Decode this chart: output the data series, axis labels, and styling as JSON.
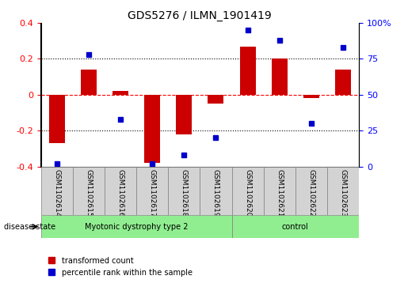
{
  "title": "GDS5276 / ILMN_1901419",
  "samples": [
    "GSM1102614",
    "GSM1102615",
    "GSM1102616",
    "GSM1102617",
    "GSM1102618",
    "GSM1102619",
    "GSM1102620",
    "GSM1102621",
    "GSM1102622",
    "GSM1102623"
  ],
  "bar_values": [
    -0.27,
    0.14,
    0.02,
    -0.38,
    -0.22,
    -0.05,
    0.27,
    0.2,
    -0.02,
    0.14
  ],
  "dot_values": [
    2,
    78,
    33,
    2,
    8,
    20,
    95,
    88,
    30,
    83
  ],
  "groups": [
    {
      "label": "Myotonic dystrophy type 2",
      "start": 0,
      "end": 6,
      "color": "#90ee90"
    },
    {
      "label": "control",
      "start": 6,
      "end": 10,
      "color": "#90ee90"
    }
  ],
  "bar_color": "#cc0000",
  "dot_color": "#0000cc",
  "ylim_left": [
    -0.4,
    0.4
  ],
  "ylim_right": [
    0,
    100
  ],
  "yticks_left": [
    -0.4,
    -0.2,
    0.0,
    0.2,
    0.4
  ],
  "yticks_right": [
    0,
    25,
    50,
    75,
    100
  ],
  "ytick_labels_left": [
    "-0.4",
    "-0.2",
    "0",
    "0.2",
    "0.4"
  ],
  "ytick_labels_right": [
    "0",
    "25",
    "50",
    "75",
    "100%"
  ],
  "hlines": [
    0.0,
    0.2,
    -0.2
  ],
  "hline_styles": [
    "dashed-red",
    "dotted-black",
    "dotted-black"
  ],
  "legend_labels": [
    "transformed count",
    "percentile rank within the sample"
  ],
  "disease_label": "disease state",
  "bar_width": 0.5
}
